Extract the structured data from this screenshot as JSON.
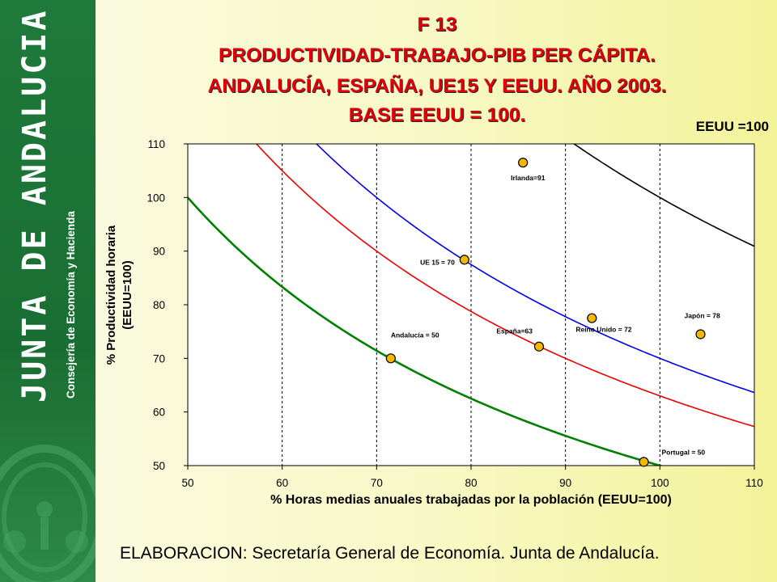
{
  "sidebar": {
    "brand": "JUNTA DE ANDALUCIA",
    "subbrand": "Consejería de Economía y Hacienda"
  },
  "slide": {
    "title_lines": [
      "F 13",
      "PRODUCTIVIDAD-TRABAJO-PIB PER CÁPITA.",
      "ANDALUCÍA, ESPAÑA, UE15 Y EEUU. AÑO 2003.",
      "BASE EEUU = 100."
    ],
    "footer": "ELABORACION: Secretaría General de Economía. Junta de Andalucía."
  },
  "colors": {
    "sidebar_green": "#1e7a3b",
    "title_red": "#e0000a",
    "curve_eeuu": "#000000",
    "curve_ue15": "#0000ee",
    "curve_espana": "#ee0000",
    "curve_andalucia": "#008000",
    "marker_fill": "#f5b800"
  },
  "chart_data": {
    "type": "scatter",
    "title": "",
    "xlabel": "% Horas medias anuales trabajadas por la población (EEUU=100)",
    "ylabel_line1": "% Productividad horaria",
    "ylabel_line2": "(EEUU=100)",
    "xlim": [
      50,
      110
    ],
    "ylim": [
      50,
      110
    ],
    "xticks": [
      50,
      60,
      70,
      80,
      90,
      100,
      110
    ],
    "yticks": [
      50,
      60,
      70,
      80,
      90,
      100,
      110
    ],
    "grid": "vertical dashed",
    "curve_label": "EEUU =100",
    "curves": [
      {
        "k": 100,
        "color": "#000000"
      },
      {
        "k": 70,
        "color": "#0000ee"
      },
      {
        "k": 63,
        "color": "#ee0000"
      },
      {
        "k": 50,
        "color": "#008000"
      }
    ],
    "points": [
      {
        "label": "Irlanda=91",
        "x": 85.5,
        "y": 106.5
      },
      {
        "label": "UE 15 = 70",
        "x": 79.3,
        "y": 88.4
      },
      {
        "label": "Reino Unido = 72",
        "x": 92.8,
        "y": 77.5
      },
      {
        "label": "Japón = 78",
        "x": 104.3,
        "y": 74.5
      },
      {
        "label": "España=63",
        "x": 87.2,
        "y": 72.2
      },
      {
        "label": "Andalucía = 50",
        "x": 71.5,
        "y": 70.0
      },
      {
        "label": "Portugal = 50",
        "x": 98.3,
        "y": 50.7
      }
    ]
  }
}
